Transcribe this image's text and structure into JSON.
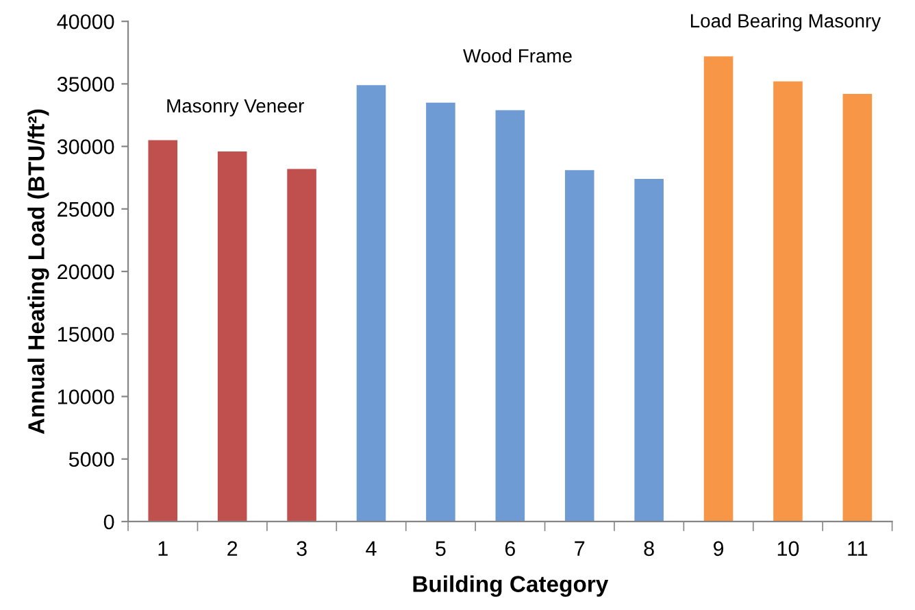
{
  "chart_data": {
    "type": "bar",
    "xlabel": "Building Category",
    "ylabel": "Annual Heating Load (BTU/ft²)",
    "categories": [
      "1",
      "2",
      "3",
      "4",
      "5",
      "6",
      "7",
      "8",
      "9",
      "10",
      "11"
    ],
    "values": [
      30500,
      29600,
      28200,
      34900,
      33500,
      32900,
      28100,
      27400,
      37200,
      35200,
      34200
    ],
    "colors": [
      "#c0504d",
      "#c0504d",
      "#c0504d",
      "#6f9bd4",
      "#6f9bd4",
      "#6f9bd4",
      "#6f9bd4",
      "#6f9bd4",
      "#f79646",
      "#f79646",
      "#f79646"
    ],
    "ylim": [
      0,
      40000
    ],
    "yticks": [
      0,
      5000,
      10000,
      15000,
      20000,
      25000,
      30000,
      35000,
      40000
    ],
    "annotations": [
      "Masonry Veneer",
      "Wood Frame",
      "Load Bearing Masonry"
    ],
    "grid": false,
    "legend": false
  }
}
